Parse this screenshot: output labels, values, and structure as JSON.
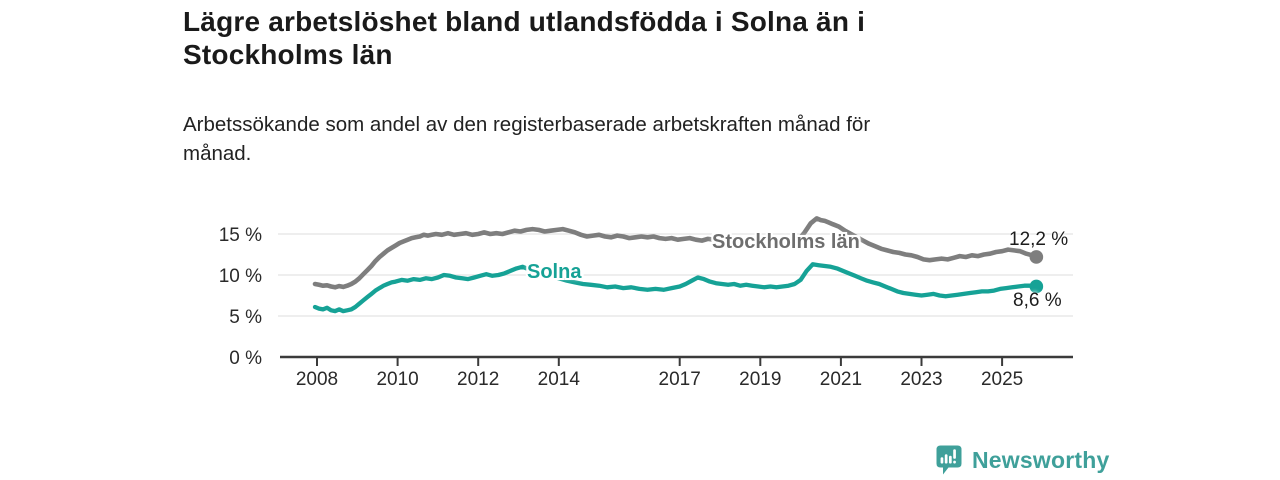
{
  "title": {
    "lines": [
      "Lägre arbetslöshet bland utlandsfödda i Solna än i",
      "Stockholms län"
    ]
  },
  "subtitle": {
    "lines": [
      "Arbetssökande som andel av den registerbaserade arbetskraften månad för",
      "månad."
    ]
  },
  "chart_data": {
    "type": "line",
    "unit": "%",
    "grid": true,
    "x_axis": {
      "ticks": [
        2008,
        2010,
        2012,
        2014,
        2017,
        2019,
        2021,
        2023,
        2025
      ],
      "range": [
        2007.9,
        2026.8
      ]
    },
    "y_axis": {
      "tick_values": [
        0,
        5,
        10,
        15
      ],
      "tick_labels": [
        "0 %",
        "5 %",
        "10 %",
        "15 %"
      ],
      "gridline_values": [
        5,
        10,
        15
      ],
      "range": [
        0,
        17.5
      ]
    },
    "colors": {
      "stockholm_line": "#7e7e7e",
      "stockholm_label": "#6e6e6e",
      "solna_line": "#16a296",
      "axis": "#3b3b3b",
      "gridline": "#e4e4e4",
      "tick_text": "#2a2a2a"
    },
    "series": [
      {
        "name": "Stockholms län",
        "end_label": "12,2 %",
        "end_value": 12.2,
        "points": [
          [
            2007.95,
            8.9
          ],
          [
            2008.05,
            8.8
          ],
          [
            2008.15,
            8.7
          ],
          [
            2008.25,
            8.75
          ],
          [
            2008.35,
            8.6
          ],
          [
            2008.45,
            8.5
          ],
          [
            2008.55,
            8.65
          ],
          [
            2008.65,
            8.55
          ],
          [
            2008.75,
            8.7
          ],
          [
            2008.85,
            8.9
          ],
          [
            2008.95,
            9.2
          ],
          [
            2009.05,
            9.6
          ],
          [
            2009.15,
            10.1
          ],
          [
            2009.25,
            10.6
          ],
          [
            2009.35,
            11.1
          ],
          [
            2009.45,
            11.7
          ],
          [
            2009.55,
            12.2
          ],
          [
            2009.65,
            12.6
          ],
          [
            2009.75,
            13.0
          ],
          [
            2009.85,
            13.3
          ],
          [
            2009.95,
            13.6
          ],
          [
            2010.05,
            13.9
          ],
          [
            2010.15,
            14.1
          ],
          [
            2010.25,
            14.3
          ],
          [
            2010.35,
            14.5
          ],
          [
            2010.45,
            14.6
          ],
          [
            2010.55,
            14.7
          ],
          [
            2010.65,
            14.9
          ],
          [
            2010.75,
            14.8
          ],
          [
            2010.85,
            14.9
          ],
          [
            2010.95,
            15.0
          ],
          [
            2011.1,
            14.9
          ],
          [
            2011.25,
            15.1
          ],
          [
            2011.4,
            14.9
          ],
          [
            2011.55,
            15.0
          ],
          [
            2011.7,
            15.1
          ],
          [
            2011.85,
            14.9
          ],
          [
            2012.0,
            15.0
          ],
          [
            2012.15,
            15.2
          ],
          [
            2012.3,
            15.0
          ],
          [
            2012.45,
            15.1
          ],
          [
            2012.6,
            15.0
          ],
          [
            2012.75,
            15.2
          ],
          [
            2012.9,
            15.4
          ],
          [
            2013.05,
            15.3
          ],
          [
            2013.2,
            15.5
          ],
          [
            2013.35,
            15.6
          ],
          [
            2013.5,
            15.5
          ],
          [
            2013.65,
            15.3
          ],
          [
            2013.8,
            15.4
          ],
          [
            2013.95,
            15.5
          ],
          [
            2014.1,
            15.6
          ],
          [
            2014.25,
            15.4
          ],
          [
            2014.4,
            15.2
          ],
          [
            2014.55,
            14.9
          ],
          [
            2014.7,
            14.7
          ],
          [
            2014.85,
            14.8
          ],
          [
            2015.0,
            14.9
          ],
          [
            2015.15,
            14.7
          ],
          [
            2015.3,
            14.6
          ],
          [
            2015.45,
            14.8
          ],
          [
            2015.6,
            14.7
          ],
          [
            2015.75,
            14.5
          ],
          [
            2015.9,
            14.6
          ],
          [
            2016.05,
            14.7
          ],
          [
            2016.2,
            14.6
          ],
          [
            2016.35,
            14.7
          ],
          [
            2016.5,
            14.5
          ],
          [
            2016.65,
            14.4
          ],
          [
            2016.8,
            14.5
          ],
          [
            2016.95,
            14.3
          ],
          [
            2017.1,
            14.4
          ],
          [
            2017.25,
            14.5
          ],
          [
            2017.4,
            14.3
          ],
          [
            2017.55,
            14.2
          ],
          [
            2017.7,
            14.4
          ],
          [
            2017.85,
            14.3
          ],
          [
            2018.0,
            14.2
          ],
          [
            2018.2,
            14.1
          ],
          [
            2018.4,
            14.0
          ],
          [
            2018.6,
            13.9
          ],
          [
            2018.8,
            13.8
          ],
          [
            2019.0,
            13.8
          ],
          [
            2019.2,
            13.9
          ],
          [
            2019.4,
            13.8
          ],
          [
            2019.6,
            13.9
          ],
          [
            2019.8,
            14.0
          ],
          [
            2019.95,
            14.3
          ],
          [
            2020.1,
            15.2
          ],
          [
            2020.25,
            16.3
          ],
          [
            2020.4,
            16.9
          ],
          [
            2020.5,
            16.7
          ],
          [
            2020.6,
            16.6
          ],
          [
            2020.7,
            16.4
          ],
          [
            2020.8,
            16.2
          ],
          [
            2020.95,
            15.9
          ],
          [
            2021.1,
            15.4
          ],
          [
            2021.25,
            15.0
          ],
          [
            2021.4,
            14.6
          ],
          [
            2021.55,
            14.2
          ],
          [
            2021.7,
            13.8
          ],
          [
            2021.85,
            13.5
          ],
          [
            2022.0,
            13.2
          ],
          [
            2022.15,
            13.0
          ],
          [
            2022.3,
            12.8
          ],
          [
            2022.45,
            12.7
          ],
          [
            2022.6,
            12.5
          ],
          [
            2022.75,
            12.4
          ],
          [
            2022.9,
            12.2
          ],
          [
            2023.05,
            11.9
          ],
          [
            2023.2,
            11.8
          ],
          [
            2023.35,
            11.9
          ],
          [
            2023.5,
            12.0
          ],
          [
            2023.65,
            11.9
          ],
          [
            2023.8,
            12.1
          ],
          [
            2023.95,
            12.3
          ],
          [
            2024.1,
            12.2
          ],
          [
            2024.25,
            12.4
          ],
          [
            2024.4,
            12.3
          ],
          [
            2024.55,
            12.5
          ],
          [
            2024.7,
            12.6
          ],
          [
            2024.85,
            12.8
          ],
          [
            2025.0,
            12.9
          ],
          [
            2025.15,
            13.1
          ],
          [
            2025.3,
            13.0
          ],
          [
            2025.45,
            12.9
          ],
          [
            2025.6,
            12.6
          ],
          [
            2025.75,
            12.4
          ],
          [
            2025.85,
            12.2
          ]
        ]
      },
      {
        "name": "Solna",
        "end_label": "8,6 %",
        "end_value": 8.6,
        "points": [
          [
            2007.95,
            6.1
          ],
          [
            2008.05,
            5.9
          ],
          [
            2008.15,
            5.8
          ],
          [
            2008.25,
            6.0
          ],
          [
            2008.35,
            5.7
          ],
          [
            2008.45,
            5.6
          ],
          [
            2008.55,
            5.8
          ],
          [
            2008.65,
            5.6
          ],
          [
            2008.75,
            5.7
          ],
          [
            2008.85,
            5.8
          ],
          [
            2008.95,
            6.1
          ],
          [
            2009.05,
            6.5
          ],
          [
            2009.15,
            6.9
          ],
          [
            2009.25,
            7.3
          ],
          [
            2009.35,
            7.7
          ],
          [
            2009.45,
            8.1
          ],
          [
            2009.55,
            8.4
          ],
          [
            2009.65,
            8.7
          ],
          [
            2009.75,
            8.9
          ],
          [
            2009.85,
            9.1
          ],
          [
            2009.95,
            9.2
          ],
          [
            2010.1,
            9.4
          ],
          [
            2010.25,
            9.3
          ],
          [
            2010.4,
            9.5
          ],
          [
            2010.55,
            9.4
          ],
          [
            2010.7,
            9.6
          ],
          [
            2010.85,
            9.5
          ],
          [
            2011.0,
            9.7
          ],
          [
            2011.15,
            10.0
          ],
          [
            2011.3,
            9.9
          ],
          [
            2011.45,
            9.7
          ],
          [
            2011.6,
            9.6
          ],
          [
            2011.75,
            9.5
          ],
          [
            2011.9,
            9.7
          ],
          [
            2012.05,
            9.9
          ],
          [
            2012.2,
            10.1
          ],
          [
            2012.35,
            9.9
          ],
          [
            2012.5,
            10.0
          ],
          [
            2012.65,
            10.2
          ],
          [
            2012.8,
            10.5
          ],
          [
            2012.95,
            10.8
          ],
          [
            2013.1,
            11.0
          ],
          [
            2013.25,
            10.7
          ],
          [
            2013.4,
            10.4
          ],
          [
            2013.55,
            10.2
          ],
          [
            2013.7,
            10.0
          ],
          [
            2013.85,
            9.8
          ],
          [
            2014.0,
            9.6
          ],
          [
            2014.2,
            9.3
          ],
          [
            2014.4,
            9.1
          ],
          [
            2014.6,
            8.9
          ],
          [
            2014.8,
            8.8
          ],
          [
            2015.0,
            8.7
          ],
          [
            2015.2,
            8.5
          ],
          [
            2015.4,
            8.6
          ],
          [
            2015.6,
            8.4
          ],
          [
            2015.8,
            8.5
          ],
          [
            2016.0,
            8.3
          ],
          [
            2016.2,
            8.2
          ],
          [
            2016.4,
            8.3
          ],
          [
            2016.6,
            8.2
          ],
          [
            2016.8,
            8.4
          ],
          [
            2017.0,
            8.6
          ],
          [
            2017.15,
            8.9
          ],
          [
            2017.3,
            9.3
          ],
          [
            2017.45,
            9.7
          ],
          [
            2017.6,
            9.5
          ],
          [
            2017.75,
            9.2
          ],
          [
            2017.9,
            9.0
          ],
          [
            2018.05,
            8.9
          ],
          [
            2018.2,
            8.8
          ],
          [
            2018.35,
            8.9
          ],
          [
            2018.5,
            8.7
          ],
          [
            2018.65,
            8.8
          ],
          [
            2018.8,
            8.7
          ],
          [
            2018.95,
            8.6
          ],
          [
            2019.1,
            8.5
          ],
          [
            2019.25,
            8.6
          ],
          [
            2019.4,
            8.5
          ],
          [
            2019.55,
            8.6
          ],
          [
            2019.7,
            8.7
          ],
          [
            2019.85,
            8.9
          ],
          [
            2020.0,
            9.4
          ],
          [
            2020.15,
            10.5
          ],
          [
            2020.3,
            11.3
          ],
          [
            2020.45,
            11.2
          ],
          [
            2020.6,
            11.1
          ],
          [
            2020.75,
            11.0
          ],
          [
            2020.9,
            10.8
          ],
          [
            2021.05,
            10.5
          ],
          [
            2021.2,
            10.2
          ],
          [
            2021.35,
            9.9
          ],
          [
            2021.5,
            9.6
          ],
          [
            2021.65,
            9.3
          ],
          [
            2021.8,
            9.1
          ],
          [
            2021.95,
            8.9
          ],
          [
            2022.1,
            8.6
          ],
          [
            2022.25,
            8.3
          ],
          [
            2022.4,
            8.0
          ],
          [
            2022.55,
            7.8
          ],
          [
            2022.7,
            7.7
          ],
          [
            2022.85,
            7.6
          ],
          [
            2023.0,
            7.5
          ],
          [
            2023.15,
            7.6
          ],
          [
            2023.3,
            7.7
          ],
          [
            2023.45,
            7.5
          ],
          [
            2023.6,
            7.4
          ],
          [
            2023.75,
            7.5
          ],
          [
            2023.9,
            7.6
          ],
          [
            2024.05,
            7.7
          ],
          [
            2024.2,
            7.8
          ],
          [
            2024.35,
            7.9
          ],
          [
            2024.5,
            8.0
          ],
          [
            2024.65,
            8.0
          ],
          [
            2024.8,
            8.1
          ],
          [
            2024.95,
            8.3
          ],
          [
            2025.1,
            8.4
          ],
          [
            2025.25,
            8.5
          ],
          [
            2025.4,
            8.6
          ],
          [
            2025.55,
            8.7
          ],
          [
            2025.7,
            8.7
          ],
          [
            2025.85,
            8.6
          ]
        ]
      }
    ]
  },
  "footer": {
    "brand": "Newsworthy",
    "brand_color": "#3fa09a",
    "logo_icon": "bar-chart-speech-bubble-icon"
  }
}
